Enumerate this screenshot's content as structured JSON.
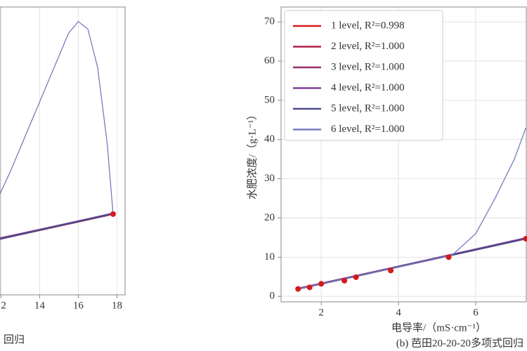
{
  "chart_data": [
    {
      "type": "line",
      "caption": "回归",
      "xlim": [
        11.95,
        18.42
      ],
      "ylim": [
        -1.4,
        73.8
      ],
      "xticks": [
        12,
        14,
        16,
        18
      ],
      "grid": true,
      "series": [
        {
          "color": "#d7191c",
          "x": [
            11.95,
            17.8
          ],
          "values": [
            13.2,
            19.7
          ]
        },
        {
          "color": "#b0224a",
          "x": [
            11.95,
            17.8
          ],
          "values": [
            13.3,
            19.7
          ]
        },
        {
          "color": "#9a2f6e",
          "x": [
            11.95,
            17.8
          ],
          "values": [
            13.4,
            19.8
          ]
        },
        {
          "color": "#7d3f96",
          "x": [
            11.95,
            17.8
          ],
          "values": [
            13.3,
            19.9
          ]
        },
        {
          "color": "#4b4b8c",
          "x": [
            11.95,
            17.8
          ],
          "values": [
            13.2,
            19.8
          ]
        },
        {
          "color": "#7a7ac0",
          "x": [
            11.95,
            12.5,
            13,
            13.5,
            14,
            14.5,
            15,
            15.5,
            16,
            16.5,
            17,
            17.5,
            17.8
          ],
          "values": [
            25,
            31,
            37,
            43,
            49,
            55,
            61,
            67,
            70,
            68,
            58,
            38,
            19.7
          ]
        }
      ],
      "points": {
        "color": "#d7191c",
        "x": [
          17.8
        ],
        "values": [
          19.7
        ]
      }
    },
    {
      "type": "line",
      "caption": "(b) 芭田20-20-20多项式回归",
      "xlabel": "电导率/（mS·cm⁻¹）",
      "ylabel": "水肥浓度/（g·L⁻¹）",
      "xlim": [
        0.96,
        7.31
      ],
      "ylim": [
        -1.4,
        73.8
      ],
      "xticks": [
        2,
        4,
        6
      ],
      "yticks": [
        0,
        10,
        20,
        30,
        40,
        50,
        60,
        70
      ],
      "grid": true,
      "series": [
        {
          "name": "1 level, R²=0.998",
          "color": "#d7191c",
          "x": [
            1.4,
            7.3
          ],
          "values": [
            1.9,
            14.7
          ]
        },
        {
          "name": "2 level, R²=1.000",
          "color": "#b0224a",
          "x": [
            1.4,
            7.3
          ],
          "values": [
            1.9,
            14.8
          ]
        },
        {
          "name": "3 level, R²=1.000",
          "color": "#9a2f6e",
          "x": [
            1.4,
            7.3
          ],
          "values": [
            2.0,
            14.8
          ]
        },
        {
          "name": "4 level, R²=1.000",
          "color": "#7d3f96",
          "x": [
            1.4,
            7.3
          ],
          "values": [
            1.9,
            14.9
          ]
        },
        {
          "name": "5 level, R²=1.000",
          "color": "#4b4b8c",
          "x": [
            1.4,
            7.3
          ],
          "values": [
            1.9,
            14.7
          ]
        },
        {
          "name": "6 level, R²=1.000",
          "color": "#7a7ac0",
          "x": [
            1.4,
            2,
            3,
            4,
            5,
            5.4,
            6,
            6.5,
            7,
            7.3
          ],
          "values": [
            1.9,
            3.2,
            5.4,
            7.5,
            9.7,
            10.6,
            16,
            25,
            35,
            43
          ]
        }
      ],
      "points": {
        "color": "#d7191c",
        "x": [
          1.4,
          1.7,
          2,
          2.6,
          2.9,
          3.8,
          5.3,
          7.3
        ],
        "values": [
          1.9,
          2.3,
          3.2,
          4.0,
          4.9,
          6.6,
          10,
          14.7
        ]
      }
    }
  ]
}
